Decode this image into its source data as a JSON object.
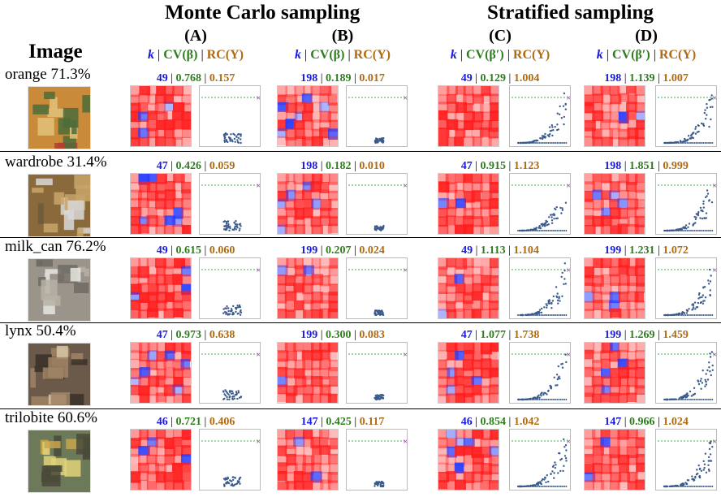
{
  "header": {
    "image_col": "Image",
    "groups": [
      "Monte Carlo sampling",
      "Stratified sampling"
    ],
    "columns": [
      {
        "letter": "(A)",
        "k": "k",
        "cv": "CV(β)",
        "rc": "RC(Y)"
      },
      {
        "letter": "(B)",
        "k": "k",
        "cv": "CV(β)",
        "rc": "RC(Y)"
      },
      {
        "letter": "(C)",
        "k": "k",
        "cv": "CV(β′)",
        "rc": "RC(Y)"
      },
      {
        "letter": "(D)",
        "k": "k",
        "cv": "CV(β′)",
        "rc": "RC(Y)"
      }
    ]
  },
  "rows": [
    {
      "label": "orange 71.3%",
      "thumb_icon": "fruit-stand-thumbnail",
      "cells": [
        {
          "k": "49",
          "cv": "0.768",
          "rc": "0.157"
        },
        {
          "k": "198",
          "cv": "0.189",
          "rc": "0.017"
        },
        {
          "k": "49",
          "cv": "0.129",
          "rc": "1.004"
        },
        {
          "k": "198",
          "cv": "1.139",
          "rc": "1.007"
        }
      ]
    },
    {
      "label": "wardrobe 31.4%",
      "thumb_icon": "wardrobe-thumbnail",
      "cells": [
        {
          "k": "47",
          "cv": "0.426",
          "rc": "0.059"
        },
        {
          "k": "198",
          "cv": "0.182",
          "rc": "0.010"
        },
        {
          "k": "47",
          "cv": "0.915",
          "rc": "1.123"
        },
        {
          "k": "198",
          "cv": "1.851",
          "rc": "0.999"
        }
      ]
    },
    {
      "label": "milk_can 76.2%",
      "thumb_icon": "milk-can-thumbnail",
      "cells": [
        {
          "k": "49",
          "cv": "0.615",
          "rc": "0.060"
        },
        {
          "k": "199",
          "cv": "0.207",
          "rc": "0.024"
        },
        {
          "k": "49",
          "cv": "1.113",
          "rc": "1.104"
        },
        {
          "k": "199",
          "cv": "1.231",
          "rc": "1.072"
        }
      ]
    },
    {
      "label": "lynx 50.4%",
      "thumb_icon": "lynx-thumbnail",
      "cells": [
        {
          "k": "47",
          "cv": "0.973",
          "rc": "0.638"
        },
        {
          "k": "199",
          "cv": "0.300",
          "rc": "0.083"
        },
        {
          "k": "47",
          "cv": "1.077",
          "rc": "1.738"
        },
        {
          "k": "199",
          "cv": "1.269",
          "rc": "1.459"
        }
      ]
    },
    {
      "label": "trilobite 60.6%",
      "thumb_icon": "trilobite-thumbnail",
      "cells": [
        {
          "k": "46",
          "cv": "0.721",
          "rc": "0.406"
        },
        {
          "k": "147",
          "cv": "0.425",
          "rc": "0.117"
        },
        {
          "k": "46",
          "cv": "0.854",
          "rc": "1.042"
        },
        {
          "k": "147",
          "cv": "0.966",
          "rc": "1.024"
        }
      ]
    }
  ],
  "colors": {
    "k": "#1a1ae6",
    "cv": "#2f7d1f",
    "rc": "#b06a10",
    "positive": "#ff0000",
    "negative": "#0000ff",
    "points": "#3b5b8c",
    "threshold_line": "#3fae3f",
    "marker": "#9b4fa8"
  }
}
